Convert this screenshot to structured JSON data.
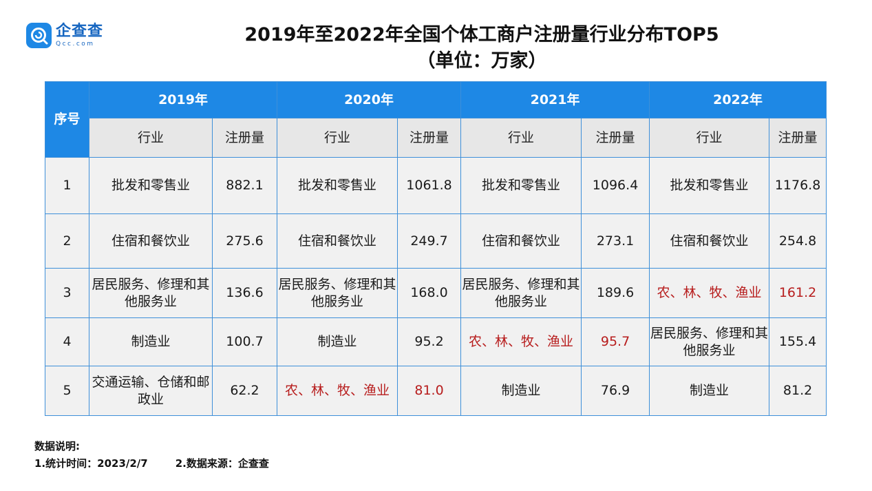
{
  "logo": {
    "name": "企查查",
    "domain": "Qcc.com"
  },
  "title_line1": "2019年至2022年全国个体工商户注册量行业分布TOP5",
  "title_line2": "（单位：万家）",
  "colors": {
    "header_blue": "#1e88e5",
    "subheader_grey": "#e7e7e7",
    "row_bg": "#f1f1f1",
    "highlight_red": "#b71c1c",
    "border": "#3d8fd9"
  },
  "chart_data": {
    "type": "table",
    "title": "2019年至2022年全国个体工商户注册量行业分布TOP5",
    "subtitle": "（单位：万家）",
    "rank_header": "序号",
    "col_industry": "行业",
    "col_count": "注册量",
    "years": [
      "2019年",
      "2020年",
      "2021年",
      "2022年"
    ],
    "rows": [
      {
        "rank": "1",
        "cells": [
          {
            "industry": "批发和零售业",
            "value": "882.1",
            "hl": false
          },
          {
            "industry": "批发和零售业",
            "value": "1061.8",
            "hl": false
          },
          {
            "industry": "批发和零售业",
            "value": "1096.4",
            "hl": false
          },
          {
            "industry": "批发和零售业",
            "value": "1176.8",
            "hl": false
          }
        ]
      },
      {
        "rank": "2",
        "cells": [
          {
            "industry": "住宿和餐饮业",
            "value": "275.6",
            "hl": false
          },
          {
            "industry": "住宿和餐饮业",
            "value": "249.7",
            "hl": false
          },
          {
            "industry": "住宿和餐饮业",
            "value": "273.1",
            "hl": false
          },
          {
            "industry": "住宿和餐饮业",
            "value": "254.8",
            "hl": false
          }
        ]
      },
      {
        "rank": "3",
        "cells": [
          {
            "industry": "居民服务、修理和其他服务业",
            "value": "136.6",
            "hl": false
          },
          {
            "industry": "居民服务、修理和其他服务业",
            "value": "168.0",
            "hl": false
          },
          {
            "industry": "居民服务、修理和其他服务业",
            "value": "189.6",
            "hl": false
          },
          {
            "industry": "农、林、牧、渔业",
            "value": "161.2",
            "hl": true
          }
        ]
      },
      {
        "rank": "4",
        "cells": [
          {
            "industry": "制造业",
            "value": "100.7",
            "hl": false
          },
          {
            "industry": "制造业",
            "value": "95.2",
            "hl": false
          },
          {
            "industry": "农、林、牧、渔业",
            "value": "95.7",
            "hl": true
          },
          {
            "industry": "居民服务、修理和其他服务业",
            "value": "155.4",
            "hl": false
          }
        ]
      },
      {
        "rank": "5",
        "cells": [
          {
            "industry": "交通运输、仓储和邮政业",
            "value": "62.2",
            "hl": false
          },
          {
            "industry": "农、林、牧、渔业",
            "value": "81.0",
            "hl": true
          },
          {
            "industry": "制造业",
            "value": "76.9",
            "hl": false
          },
          {
            "industry": "制造业",
            "value": "81.2",
            "hl": false
          }
        ]
      }
    ]
  },
  "notes": {
    "heading": "数据说明:",
    "item1": "1.统计时间：2023/2/7",
    "item2": "2.数据来源：企查查"
  }
}
